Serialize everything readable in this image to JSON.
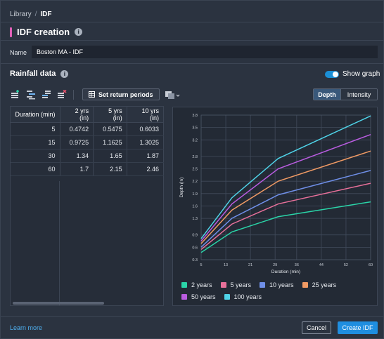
{
  "breadcrumb": {
    "root": "Library",
    "separator": "/",
    "current": "IDF"
  },
  "page": {
    "title": "IDF creation",
    "info_icon": "info-icon"
  },
  "name_field": {
    "label": "Name",
    "value": "Boston MA - IDF"
  },
  "rainfall": {
    "title": "Rainfall data",
    "show_graph_label": "Show graph",
    "show_graph_on": true
  },
  "toolbar": {
    "icons": [
      "add-row-icon",
      "insert-row-icon",
      "copy-rows-icon",
      "delete-rows-icon",
      "export-icon"
    ],
    "set_return_periods_label": "Set return periods"
  },
  "view_toggle": {
    "depth_label": "Depth",
    "intensity_label": "Intensity",
    "selected": "Depth"
  },
  "table": {
    "headers": [
      "Duration (min)",
      "2 yrs (in)",
      "5 yrs (in)",
      "10 yrs (in)"
    ],
    "rows": [
      [
        "5",
        "0.4742",
        "0.5475",
        "0.6033"
      ],
      [
        "15",
        "0.9725",
        "1.1625",
        "1.3025"
      ],
      [
        "30",
        "1.34",
        "1.65",
        "1.87"
      ],
      [
        "60",
        "1.7",
        "2.15",
        "2.46"
      ]
    ]
  },
  "chart_data": {
    "type": "line",
    "xlabel": "Duration (min)",
    "ylabel": "Depth (in)",
    "xlim": [
      5,
      60
    ],
    "ylim": [
      0.3,
      3.8
    ],
    "xticks": [
      5,
      13,
      21,
      29,
      36,
      44,
      52,
      60
    ],
    "yticks": [
      0.3,
      0.6,
      0.9,
      1.3,
      1.6,
      1.9,
      2.2,
      2.5,
      2.8,
      3.2,
      3.5,
      3.8
    ],
    "ytick_labels": [
      "0.3",
      "0.6",
      "0.9",
      "1.3",
      "1.6",
      "1.9",
      "2.2",
      "2.5",
      "2.8",
      "3.2",
      "3.5",
      "3.8"
    ],
    "x": [
      5,
      15,
      30,
      60
    ],
    "grid": true,
    "legend_position": "bottom",
    "series": [
      {
        "name": "2 years",
        "color": "#2ad4a8",
        "values": [
          0.4742,
          0.9725,
          1.34,
          1.7
        ]
      },
      {
        "name": "5 years",
        "color": "#e8709a",
        "values": [
          0.5475,
          1.1625,
          1.65,
          2.15
        ]
      },
      {
        "name": "10 years",
        "color": "#6f8fe8",
        "values": [
          0.6033,
          1.3025,
          1.87,
          2.46
        ]
      },
      {
        "name": "25 years",
        "color": "#f09a64",
        "values": [
          0.69,
          1.5,
          2.2,
          2.93
        ]
      },
      {
        "name": "50 years",
        "color": "#b95ce0",
        "values": [
          0.75,
          1.65,
          2.5,
          3.33
        ]
      },
      {
        "name": "100 years",
        "color": "#4fd3e8",
        "values": [
          0.81,
          1.8,
          2.75,
          3.78
        ]
      }
    ]
  },
  "footer": {
    "learn_more": "Learn more",
    "cancel_label": "Cancel",
    "create_label": "Create IDF"
  }
}
